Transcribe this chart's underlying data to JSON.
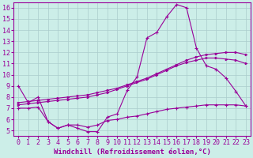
{
  "background_color": "#cceee8",
  "line_color": "#990099",
  "grid_color": "#aacccc",
  "xlabel": "Windchill (Refroidissement éolien,°C)",
  "xlabel_fontsize": 6.5,
  "tick_fontsize": 6.0,
  "xlim": [
    -0.5,
    23.5
  ],
  "ylim": [
    4.5,
    16.5
  ],
  "yticks": [
    5,
    6,
    7,
    8,
    9,
    10,
    11,
    12,
    13,
    14,
    15,
    16
  ],
  "xticks": [
    0,
    1,
    2,
    3,
    4,
    5,
    6,
    7,
    8,
    9,
    10,
    11,
    12,
    13,
    14,
    15,
    16,
    17,
    18,
    19,
    20,
    21,
    22,
    23
  ],
  "line1_x": [
    0,
    1,
    2,
    3,
    4,
    5,
    6,
    7,
    8,
    9,
    10,
    11,
    12,
    13,
    14,
    15,
    16,
    17,
    18,
    19,
    20,
    21,
    22,
    23
  ],
  "line1_y": [
    9.0,
    7.5,
    8.0,
    5.8,
    5.2,
    5.5,
    5.2,
    4.9,
    4.9,
    6.2,
    6.5,
    8.6,
    9.8,
    13.3,
    13.8,
    15.2,
    16.3,
    16.0,
    12.4,
    10.8,
    10.5,
    9.7,
    8.5,
    7.2
  ],
  "line2_x": [
    0,
    1,
    2,
    3,
    4,
    5,
    6,
    7,
    8,
    9,
    10,
    11,
    12,
    13,
    14,
    15,
    16,
    17,
    18,
    19,
    20,
    21,
    22,
    23
  ],
  "line2_y": [
    7.5,
    7.6,
    7.7,
    7.8,
    7.9,
    8.0,
    8.1,
    8.2,
    8.4,
    8.6,
    8.8,
    9.1,
    9.4,
    9.7,
    10.1,
    10.5,
    10.9,
    11.3,
    11.6,
    11.8,
    11.9,
    12.0,
    12.0,
    11.8
  ],
  "line3_x": [
    0,
    1,
    2,
    3,
    4,
    5,
    6,
    7,
    8,
    9,
    10,
    11,
    12,
    13,
    14,
    15,
    16,
    17,
    18,
    19,
    20,
    21,
    22,
    23
  ],
  "line3_y": [
    7.3,
    7.4,
    7.5,
    7.6,
    7.7,
    7.8,
    7.9,
    8.0,
    8.2,
    8.4,
    8.7,
    9.0,
    9.3,
    9.6,
    10.0,
    10.4,
    10.8,
    11.1,
    11.3,
    11.5,
    11.5,
    11.4,
    11.3,
    11.0
  ],
  "line4_x": [
    0,
    1,
    2,
    3,
    4,
    5,
    6,
    7,
    8,
    9,
    10,
    11,
    12,
    13,
    14,
    15,
    16,
    17,
    18,
    19,
    20,
    21,
    22,
    23
  ],
  "line4_y": [
    7.0,
    7.0,
    7.1,
    5.8,
    5.2,
    5.5,
    5.5,
    5.3,
    5.5,
    5.9,
    6.0,
    6.2,
    6.3,
    6.5,
    6.7,
    6.9,
    7.0,
    7.1,
    7.2,
    7.3,
    7.3,
    7.3,
    7.3,
    7.2
  ]
}
